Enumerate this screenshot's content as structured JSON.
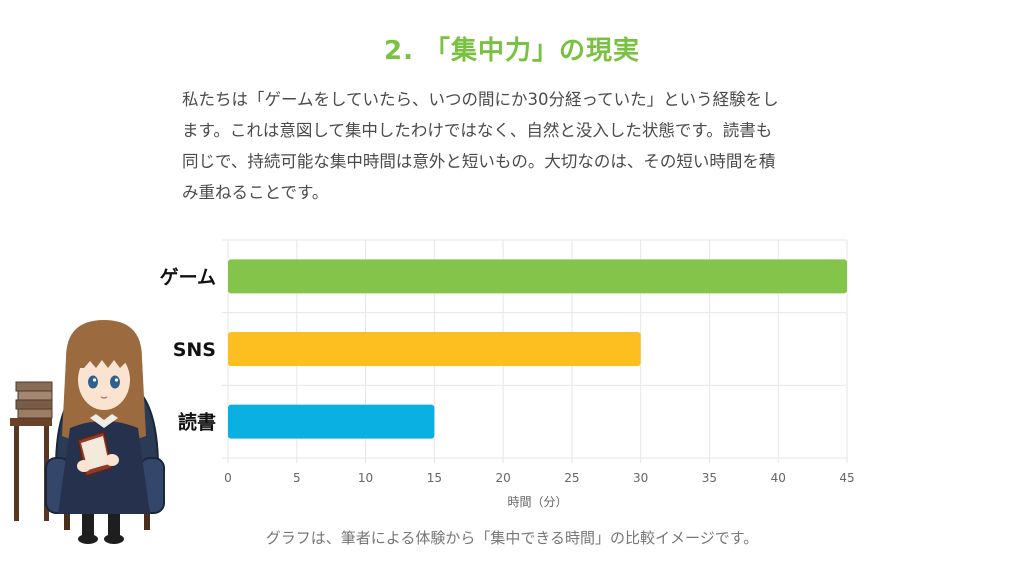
{
  "heading": "2. 「集中力」の現実",
  "paragraph_lines": [
    "私たちは「ゲームをしていたら、いつの間にか30分経っていた」という経験をし",
    "ます。これは意図して集中したわけではなく、自然と没入した状態です。読書も",
    "同じで、持続可能な集中時間は意外と短いもの。大切なのは、その短い時間を積",
    "み重ねることです。"
  ],
  "caption": "グラフは、筆者による体験から「集中できる時間」の比較イメージです。",
  "chart_data": {
    "type": "bar",
    "orientation": "horizontal",
    "categories": [
      "ゲーム",
      "SNS",
      "読書"
    ],
    "values": [
      45,
      30,
      15
    ],
    "colors": [
      "#84c44a",
      "#fcbf1f",
      "#0bb0e3"
    ],
    "xlabel": "時間（分）",
    "xlim": [
      0,
      45
    ],
    "xticks": [
      0,
      5,
      10,
      15,
      20,
      25,
      30,
      35,
      40,
      45
    ],
    "grid": true
  },
  "illustration": {
    "icon": "girl-reading-in-armchair-icon",
    "books_icon": "book-stack-icon"
  }
}
